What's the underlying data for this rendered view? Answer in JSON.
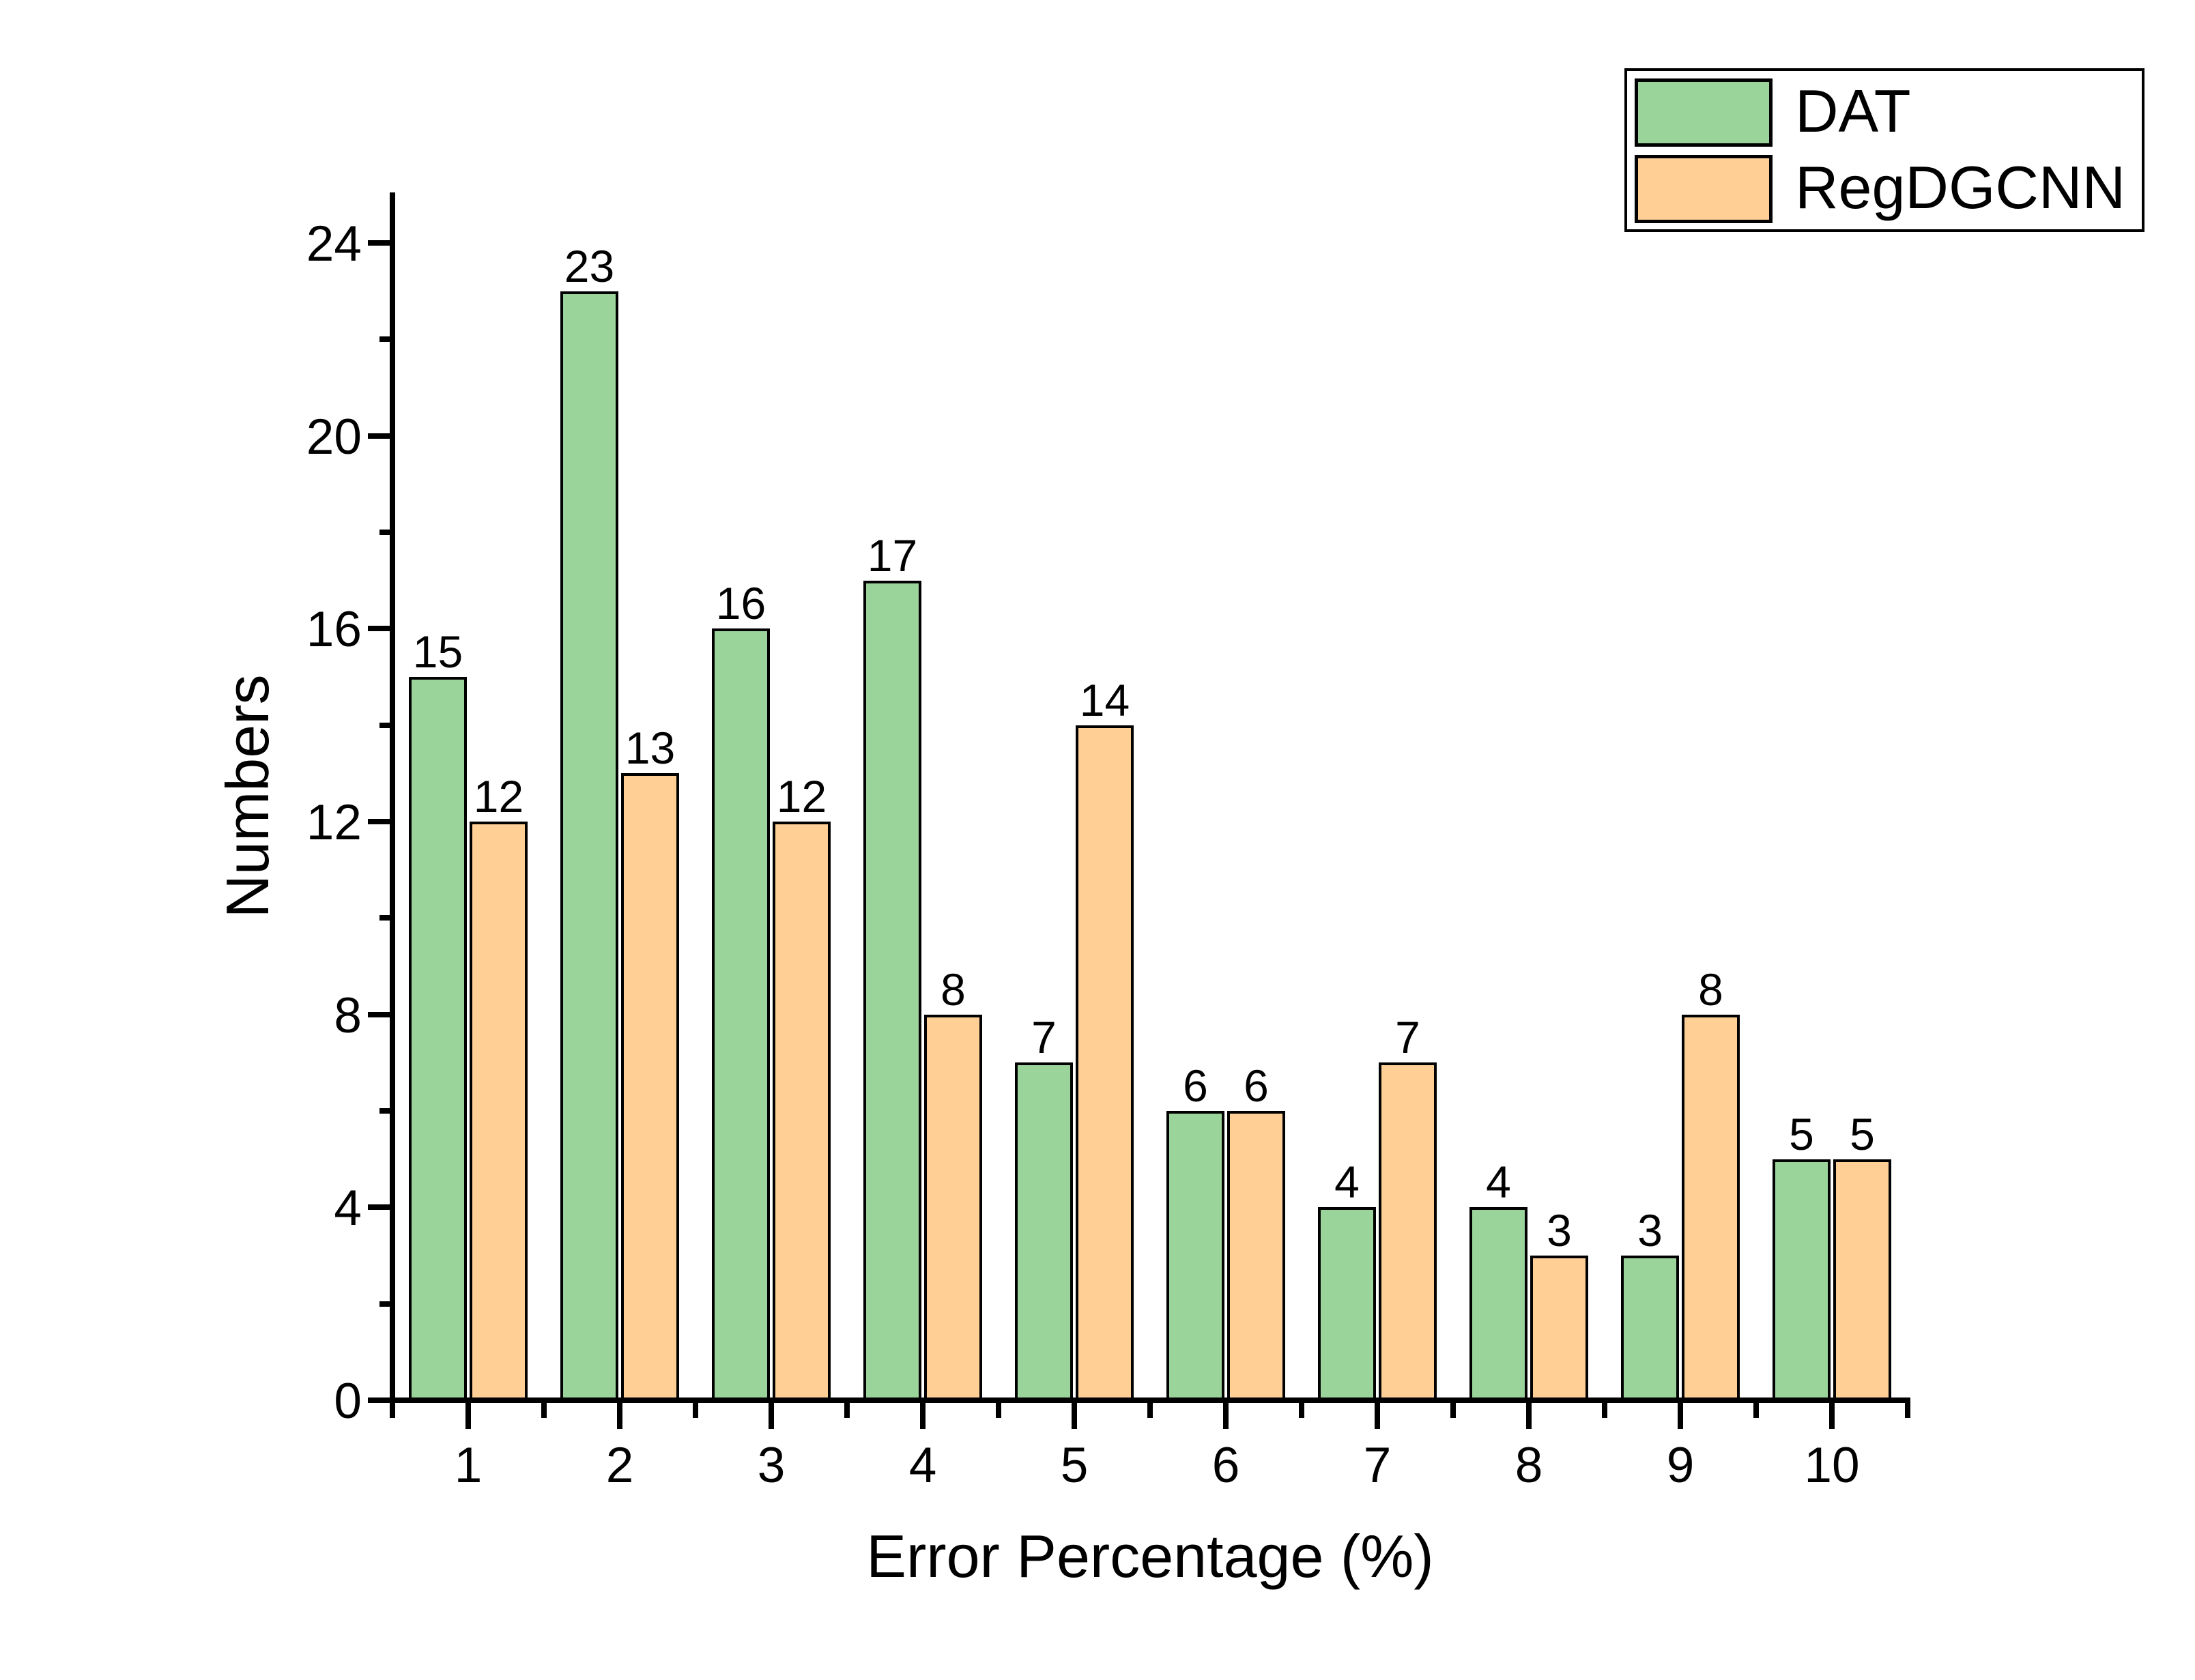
{
  "chart_data": {
    "type": "bar",
    "title": "",
    "categories": [
      "1",
      "2",
      "3",
      "4",
      "5",
      "6",
      "7",
      "8",
      "9",
      "10"
    ],
    "series": [
      {
        "name": "DAT",
        "color": "#9BD49B",
        "values": [
          15,
          23,
          16,
          17,
          7,
          6,
          4,
          4,
          3,
          5
        ]
      },
      {
        "name": "RegDGCNN",
        "color": "#FFCF96",
        "values": [
          12,
          13,
          12,
          8,
          14,
          6,
          7,
          3,
          8,
          5
        ]
      }
    ],
    "xlabel": "Error Percentage (%)",
    "ylabel": "Numbers",
    "ylim": [
      0,
      25
    ],
    "y_major_ticks": [
      0,
      4,
      8,
      12,
      16,
      20,
      24
    ],
    "y_minor_ticks": [
      2,
      6,
      10,
      14,
      18,
      22
    ],
    "bar_value_labels": true,
    "grid": false,
    "legend_position": "top-right",
    "colors": {
      "axis": "#000000",
      "bar_border": "#000000",
      "background": "#FFFFFF"
    }
  },
  "legend": {
    "items": [
      {
        "label": "DAT",
        "color": "#9BD49B"
      },
      {
        "label": "RegDGCNN",
        "color": "#FFCF96"
      }
    ]
  }
}
